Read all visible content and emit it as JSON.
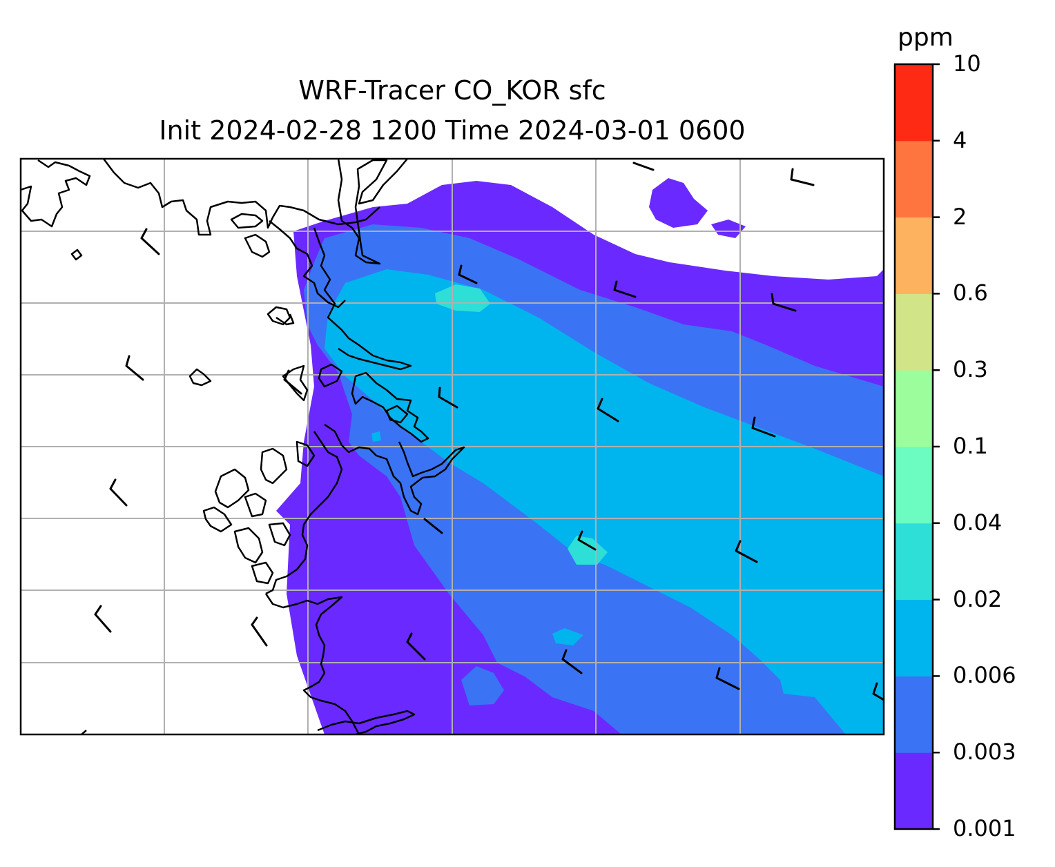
{
  "title": {
    "line1": "WRF-Tracer CO_KOR sfc",
    "line2": "Init 2024-02-28 1200 Time 2024-03-01 0600"
  },
  "colorbar": {
    "unit": "ppm",
    "levels": [
      "0.001",
      "0.003",
      "0.006",
      "0.02",
      "0.04",
      "0.1",
      "0.3",
      "0.6",
      "2",
      "4",
      "10"
    ],
    "colors": [
      "#6a2aff",
      "#3a74f5",
      "#00b4ee",
      "#2ddfd6",
      "#6cfbc0",
      "#9cfd9d",
      "#d2e488",
      "#fdb25f",
      "#fe7540",
      "#ff2a14"
    ]
  },
  "map": {
    "land_color": "#ffffff",
    "coastline_color": "#000000",
    "gridline_color": "#b0b0b0",
    "gridlines": true,
    "overlay": "wind barbs"
  }
}
